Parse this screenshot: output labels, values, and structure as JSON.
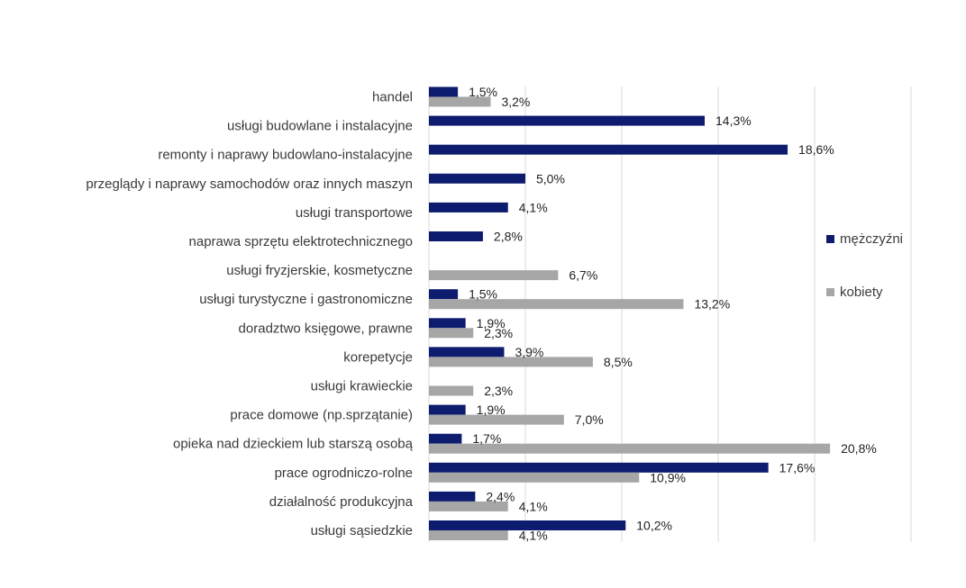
{
  "chart_data": {
    "type": "bar",
    "orientation": "horizontal",
    "categories": [
      "handel",
      "usługi budowlane i instalacyjne",
      "remonty i naprawy budowlano-instalacyjne",
      "przeglądy i naprawy samochodów oraz innych maszyn",
      "usługi transportowe",
      "naprawa sprzętu elektrotechnicznego",
      "usługi fryzjerskie, kosmetyczne",
      "usługi turystyczne i gastronomiczne",
      "doradztwo księgowe, prawne",
      "korepetycje",
      "usługi krawieckie",
      "prace domowe  (np.sprzątanie)",
      "opieka nad dzieckiem lub starszą osobą",
      "prace ogrodniczo-rolne",
      "działalność produkcyjna",
      "usługi sąsiedzkie"
    ],
    "series": [
      {
        "name": "mężczyźni",
        "color": "#0d1c6e",
        "values": [
          1.5,
          14.3,
          18.6,
          5.0,
          4.1,
          2.8,
          null,
          1.5,
          1.9,
          3.9,
          null,
          1.9,
          1.7,
          17.6,
          2.4,
          10.2
        ],
        "labels": [
          "1,5%",
          "14,3%",
          "18,6%",
          "5,0%",
          "4,1%",
          "2,8%",
          null,
          "1,5%",
          "1,9%",
          "3,9%",
          null,
          "1,9%",
          "1,7%",
          "17,6%",
          "2,4%",
          "10,2%"
        ]
      },
      {
        "name": "kobiety",
        "color": "#a6a6a6",
        "values": [
          3.2,
          null,
          null,
          null,
          null,
          null,
          6.7,
          13.2,
          2.3,
          8.5,
          2.3,
          7.0,
          20.8,
          10.9,
          4.1,
          4.1
        ],
        "labels": [
          "3,2%",
          null,
          null,
          null,
          null,
          null,
          "6,7%",
          "13,2%",
          "2,3%",
          "8,5%",
          "2,3%",
          "7,0%",
          "20,8%",
          "10,9%",
          "4,1%",
          "4,1%"
        ]
      }
    ],
    "xlim": [
      0,
      25
    ],
    "grid": true,
    "legend_position": "right"
  }
}
